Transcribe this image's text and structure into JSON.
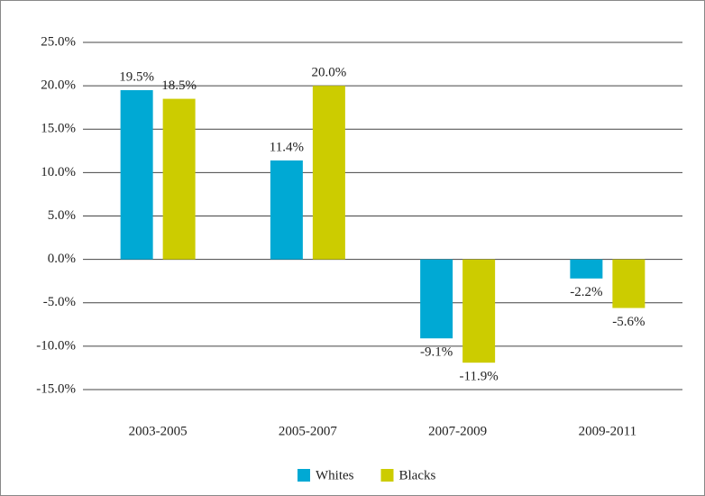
{
  "chart_data": {
    "type": "bar",
    "categories": [
      "2003-2005",
      "2005-2007",
      "2007-2009",
      "2009-2011"
    ],
    "series": [
      {
        "name": "Whites",
        "color": "#00a9d4",
        "values": [
          19.5,
          11.4,
          -9.1,
          -2.2
        ],
        "value_labels": [
          "19.5%",
          "11.4%",
          "-9.1%",
          "-2.2%"
        ]
      },
      {
        "name": "Blacks",
        "color": "#cccc00",
        "values": [
          18.5,
          20.0,
          -11.9,
          -5.6
        ],
        "value_labels": [
          "18.5%",
          "20.0%",
          "-11.9%",
          "-5.6%"
        ]
      }
    ],
    "ylim": [
      -15,
      25
    ],
    "yticks": [
      {
        "value": -15,
        "label": "-15.0%"
      },
      {
        "value": -10,
        "label": "-10.0%"
      },
      {
        "value": -5,
        "label": "-5.0%"
      },
      {
        "value": 0,
        "label": "0.0%"
      },
      {
        "value": 5,
        "label": "5.0%"
      },
      {
        "value": 10,
        "label": "10.0%"
      },
      {
        "value": 15,
        "label": "15.0%"
      },
      {
        "value": 20,
        "label": "20.0%"
      },
      {
        "value": 25,
        "label": "25.0%"
      }
    ],
    "grid": true,
    "legend": "bottom"
  }
}
